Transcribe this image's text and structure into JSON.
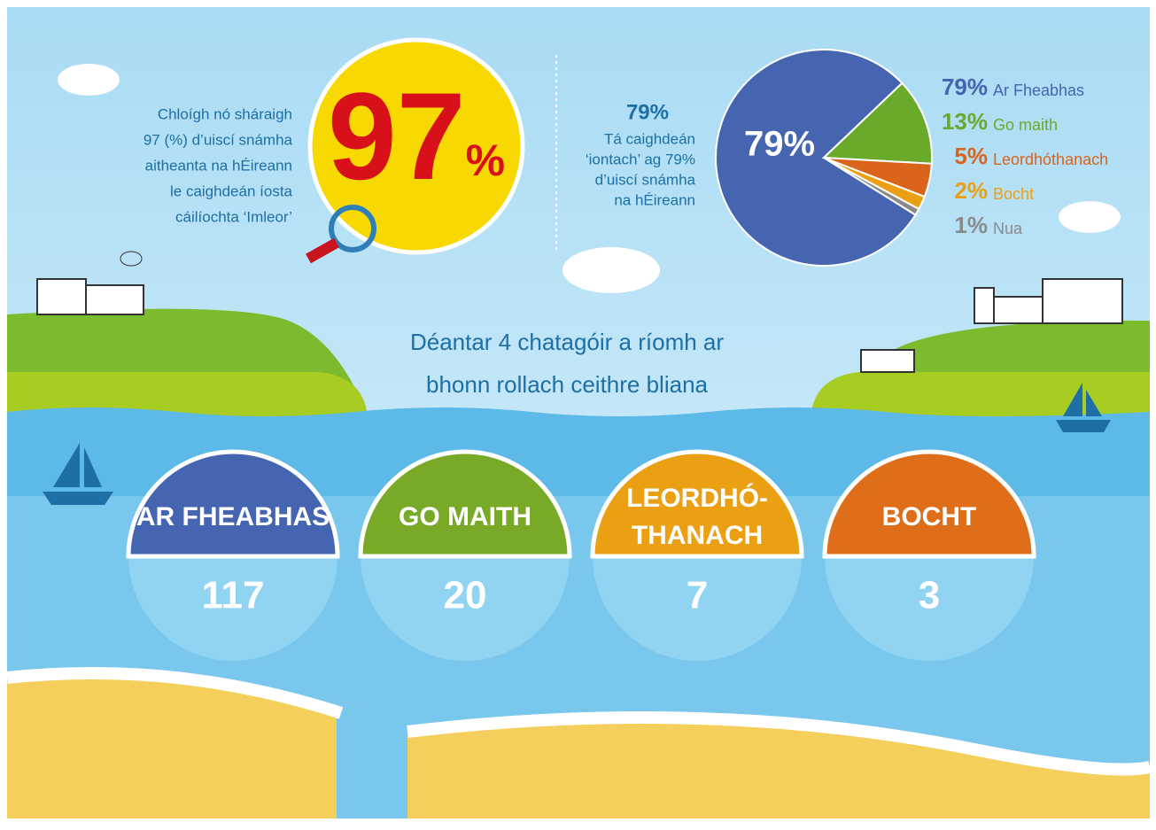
{
  "left_text": [
    "Chloígh nó sháraigh",
    "97 (%) d’uiscí snámha",
    "aitheanta na hÉireann",
    "le caighdeán íosta",
    "cáilíochta ‘Imleor’"
  ],
  "big_stat": {
    "number": "97",
    "unit": "%"
  },
  "pie_text": {
    "headline": "79%",
    "lines": [
      "Tá caighdeán",
      "‘iontach’ ag 79%",
      "d’uiscí snámha",
      "na hÉireann"
    ]
  },
  "chart_data": {
    "type": "pie",
    "categories": [
      "Ar Fheabhas",
      "Go maith",
      "Leordhóthanach",
      "Bocht",
      "Nua"
    ],
    "values": [
      79,
      13,
      5,
      2,
      1
    ],
    "value_labels": [
      "79%",
      "13%",
      "5%",
      "2%",
      "1%"
    ],
    "colors": [
      "#4565b0",
      "#6aaa2a",
      "#d9641a",
      "#eba013",
      "#8a8a8a"
    ]
  },
  "heading": [
    "Déantar 4 chatagóir a ríomh ar",
    "bhonn rollach ceithre bliana"
  ],
  "categories": [
    {
      "label": [
        "AR FHEABHAS"
      ],
      "count": "117",
      "color": "#4565b0"
    },
    {
      "label": [
        "GO MAITH"
      ],
      "count": "20",
      "color": "#78aa28"
    },
    {
      "label": [
        "LEORDHÓ-",
        "THANACH"
      ],
      "count": "7",
      "color": "#eba013"
    },
    {
      "label": [
        "BOCHT"
      ],
      "count": "3",
      "color": "#de6e1a"
    }
  ]
}
